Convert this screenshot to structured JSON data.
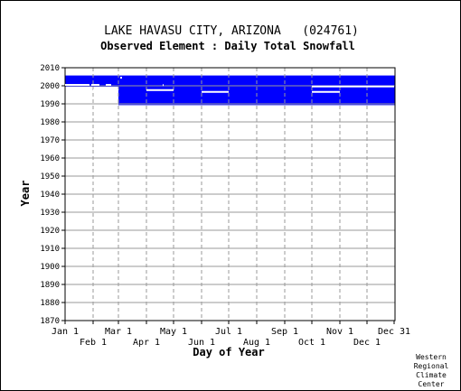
{
  "chart_data": {
    "type": "heatmap",
    "title": "LAKE HAVASU CITY, ARIZONA   (024761)",
    "subtitle": "Observed Element : Daily Total Snowfall",
    "xlabel": "Day of Year",
    "ylabel": "Year",
    "ylim": [
      1870,
      2010
    ],
    "y_ticks": [
      2010,
      2000,
      1990,
      1980,
      1970,
      1960,
      1950,
      1940,
      1930,
      1920,
      1910,
      1900,
      1890,
      1880,
      1870
    ],
    "x_ticks_upper": [
      {
        "label": "Jan 1",
        "day": 1
      },
      {
        "label": "Mar 1",
        "day": 60
      },
      {
        "label": "May 1",
        "day": 121
      },
      {
        "label": "Jul 1",
        "day": 182
      },
      {
        "label": "Sep 1",
        "day": 244
      },
      {
        "label": "Nov 1",
        "day": 305
      },
      {
        "label": "Dec 31",
        "day": 365
      }
    ],
    "x_ticks_lower": [
      {
        "label": "Feb 1",
        "day": 32
      },
      {
        "label": "Apr 1",
        "day": 91
      },
      {
        "label": "Jun 1",
        "day": 152
      },
      {
        "label": "Aug 1",
        "day": 213
      },
      {
        "label": "Oct 1",
        "day": 274
      },
      {
        "label": "Dec 1",
        "day": 335
      }
    ],
    "month_gridlines": [
      32,
      60,
      91,
      121,
      152,
      182,
      213,
      244,
      274,
      305,
      335
    ],
    "observed_color": "#0000ff",
    "observed_blocks": [
      {
        "year_start": 1999.5,
        "year_end": 2005.7,
        "day_start": 1,
        "day_end": 60
      },
      {
        "year_start": 1989.3,
        "year_end": 2005.7,
        "day_start": 60,
        "day_end": 366
      }
    ],
    "missing_segments": [
      {
        "year": 2000.5,
        "day_start": 1,
        "day_end": 28
      },
      {
        "year": 2000.5,
        "day_start": 30,
        "day_end": 39
      },
      {
        "year": 2000.5,
        "day_start": 46,
        "day_end": 52
      },
      {
        "year": 1997.6,
        "day_start": 32,
        "day_end": 60
      },
      {
        "year": 1997.6,
        "day_start": 91,
        "day_end": 121
      },
      {
        "year": 1996.6,
        "day_start": 152,
        "day_end": 182
      },
      {
        "year": 1999.6,
        "day_start": 274,
        "day_end": 365
      },
      {
        "year": 1996.6,
        "day_start": 274,
        "day_end": 305
      },
      {
        "year": 2000.4,
        "day_start": 109,
        "day_end": 110
      },
      {
        "year": 2004.5,
        "day_start": 62,
        "day_end": 64
      }
    ],
    "grid": true
  },
  "credit": {
    "line1": "Western",
    "line2": "Regional",
    "line3": "Climate",
    "line4": "Center"
  }
}
